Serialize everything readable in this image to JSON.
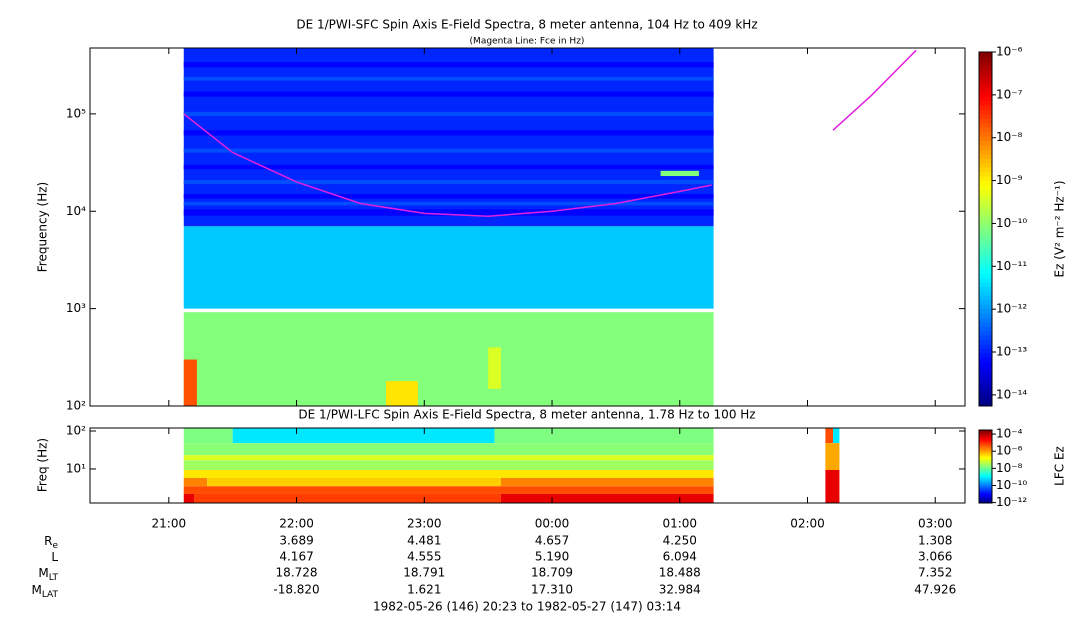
{
  "chart_data": [
    {
      "type": "spectrogram",
      "title": "DE 1/PWI-SFC  Spin Axis E-Field Spectra, 8 meter antenna, 104 Hz to 409 kHz",
      "subtitle": "(Magenta Line: Fce in Hz)",
      "y_label": "Frequency (Hz)",
      "colorbar_label": "Ez (V² m⁻² Hz⁻¹)",
      "colormap": "jet",
      "log_y": true,
      "log_color": true,
      "xlim": [
        20.383,
        27.233
      ],
      "ylim": [
        100,
        475000
      ],
      "yticks": [
        {
          "value": 100,
          "label": "10²"
        },
        {
          "value": 1000,
          "label": "10³"
        },
        {
          "value": 10000,
          "label": "10⁴"
        },
        {
          "value": 100000,
          "label": "10⁵"
        }
      ],
      "clim": [
        5.5e-15,
        1e-06
      ],
      "cticks": [
        {
          "value": 1e-06,
          "label": "10⁻⁶"
        },
        {
          "value": 1e-07,
          "label": "10⁻⁷"
        },
        {
          "value": 1e-08,
          "label": "10⁻⁸"
        },
        {
          "value": 1e-09,
          "label": "10⁻⁹"
        },
        {
          "value": 1e-10,
          "label": "10⁻¹⁰"
        },
        {
          "value": 1e-11,
          "label": "10⁻¹¹"
        },
        {
          "value": 1e-12,
          "label": "10⁻¹²"
        },
        {
          "value": 1e-13,
          "label": "10⁻¹³"
        },
        {
          "value": 1e-14,
          "label": "10⁻¹⁴"
        }
      ],
      "regions": [
        {
          "x": [
            21.117,
            25.265
          ],
          "y": [
            7000,
            475000
          ],
          "value": 1.2e-13
        },
        {
          "x": [
            21.117,
            25.265
          ],
          "y": [
            9000,
            10500
          ],
          "value": 6e-14
        },
        {
          "x": [
            21.117,
            25.265
          ],
          "y": [
            11500,
            12500
          ],
          "value": 2.5e-13
        },
        {
          "x": [
            21.117,
            25.265
          ],
          "y": [
            13500,
            15000
          ],
          "value": 6e-14
        },
        {
          "x": [
            21.117,
            25.265
          ],
          "y": [
            19000,
            21000
          ],
          "value": 2.5e-13
        },
        {
          "x": [
            21.117,
            25.265
          ],
          "y": [
            27000,
            30000
          ],
          "value": 6e-14
        },
        {
          "x": [
            21.117,
            25.265
          ],
          "y": [
            40000,
            44000
          ],
          "value": 2.5e-13
        },
        {
          "x": [
            21.117,
            25.265
          ],
          "y": [
            60000,
            68000
          ],
          "value": 6e-14
        },
        {
          "x": [
            21.117,
            25.265
          ],
          "y": [
            95000,
            105000
          ],
          "value": 2.5e-13
        },
        {
          "x": [
            21.117,
            25.265
          ],
          "y": [
            150000,
            170000
          ],
          "value": 6e-14
        },
        {
          "x": [
            21.117,
            25.265
          ],
          "y": [
            220000,
            240000
          ],
          "value": 2.5e-13
        },
        {
          "x": [
            21.117,
            25.265
          ],
          "y": [
            300000,
            340000
          ],
          "value": 6e-14
        },
        {
          "x": [
            24.85,
            25.15
          ],
          "y": [
            23000,
            26000
          ],
          "value": 8e-11
        },
        {
          "x": [
            21.117,
            25.265
          ],
          "y": [
            1000,
            7000
          ],
          "value": 2.5e-12
        },
        {
          "x": [
            21.117,
            25.265
          ],
          "y": [
            100,
            920
          ],
          "value": 8e-11
        },
        {
          "x": [
            21.117,
            21.22
          ],
          "y": [
            100,
            300
          ],
          "value": 2e-08
        },
        {
          "x": [
            22.7,
            22.95
          ],
          "y": [
            100,
            180
          ],
          "value": 1.3e-09
        },
        {
          "x": [
            23.5,
            23.6
          ],
          "y": [
            150,
            400
          ],
          "value": 4e-10
        }
      ],
      "series": [
        {
          "color": "#e020e0",
          "x": [
            21.117,
            21.5,
            22.0,
            22.5,
            23.0,
            23.5,
            24.0,
            24.5,
            25.0,
            25.25,
            25.7,
            26.2,
            26.5,
            26.85
          ],
          "values": [
            100000,
            40000,
            20000,
            12000,
            9500,
            8900,
            10000,
            12000,
            16000,
            18600,
            null,
            68000,
            155000,
            450000
          ]
        }
      ]
    },
    {
      "type": "spectrogram",
      "title": "DE 1/PWI-LFC  Spin Axis E-Field Spectra, 8 meter antenna, 1.78 Hz to 100 Hz",
      "y_label": "Freq (Hz)",
      "colorbar_label": "LFC Ez",
      "colormap": "jet",
      "log_y": true,
      "log_color": true,
      "xlim": [
        20.383,
        27.233
      ],
      "xticks": [
        {
          "value": 21,
          "label": "21:00"
        },
        {
          "value": 22,
          "label": "22:00"
        },
        {
          "value": 23,
          "label": "23:00"
        },
        {
          "value": 24,
          "label": "00:00"
        },
        {
          "value": 25,
          "label": "01:00"
        },
        {
          "value": 26,
          "label": "02:00"
        },
        {
          "value": 27,
          "label": "03:00"
        }
      ],
      "ylim": [
        1.27,
        120
      ],
      "yticks": [
        {
          "value": 10,
          "label": "10¹"
        },
        {
          "value": 100,
          "label": "10²"
        }
      ],
      "clim": [
        9e-13,
        0.0003
      ],
      "cticks": [
        {
          "value": 0.0001,
          "label": "10⁻⁴"
        },
        {
          "value": 1e-06,
          "label": "10⁻⁶"
        },
        {
          "value": 1e-08,
          "label": "10⁻⁸"
        },
        {
          "value": 1e-10,
          "label": "10⁻¹⁰"
        },
        {
          "value": 1e-12,
          "label": "10⁻¹²"
        }
      ],
      "regions": [
        {
          "x": [
            21.117,
            21.5
          ],
          "y": [
            48,
            120
          ],
          "value": 1.6e-08
        },
        {
          "x": [
            21.5,
            23.55
          ],
          "y": [
            48,
            120
          ],
          "value": 9e-10
        },
        {
          "x": [
            23.55,
            25.265
          ],
          "y": [
            48,
            120
          ],
          "value": 1.6e-08
        },
        {
          "x": [
            21.117,
            25.265
          ],
          "y": [
            23,
            48
          ],
          "value": 2e-08
        },
        {
          "x": [
            21.117,
            25.265
          ],
          "y": [
            17,
            23
          ],
          "value": 1e-07
        },
        {
          "x": [
            21.117,
            25.265
          ],
          "y": [
            9.4,
            17
          ],
          "value": 3e-08
        },
        {
          "x": [
            21.117,
            25.265
          ],
          "y": [
            5.8,
            9.4
          ],
          "value": 3e-07
        },
        {
          "x": [
            21.117,
            21.3
          ],
          "y": [
            3.5,
            5.8
          ],
          "value": 2e-06
        },
        {
          "x": [
            21.3,
            23.6
          ],
          "y": [
            3.5,
            5.8
          ],
          "value": 5e-07
        },
        {
          "x": [
            23.6,
            25.265
          ],
          "y": [
            3.5,
            5.8
          ],
          "value": 2e-06
        },
        {
          "x": [
            21.117,
            25.265
          ],
          "y": [
            2.2,
            3.5
          ],
          "value": 6e-06
        },
        {
          "x": [
            21.117,
            21.2
          ],
          "y": [
            1.27,
            2.2
          ],
          "value": 4e-05
        },
        {
          "x": [
            21.2,
            23.6
          ],
          "y": [
            1.27,
            2.2
          ],
          "value": 8e-06
        },
        {
          "x": [
            23.6,
            25.265
          ],
          "y": [
            1.27,
            2.2
          ],
          "value": 4e-05
        },
        {
          "x": [
            26.14,
            26.2
          ],
          "y": [
            48,
            120
          ],
          "value": 6e-06
        },
        {
          "x": [
            26.2,
            26.25
          ],
          "y": [
            48,
            120
          ],
          "value": 9e-10
        },
        {
          "x": [
            26.14,
            26.25
          ],
          "y": [
            9.4,
            48
          ],
          "value": 1e-06
        },
        {
          "x": [
            26.14,
            26.25
          ],
          "y": [
            1.27,
            9.4
          ],
          "value": 4e-05
        }
      ]
    }
  ],
  "ephemeris": {
    "rows": [
      {
        "label": "R",
        "sub": "e",
        "values": [
          null,
          "3.689",
          "4.481",
          "4.657",
          "4.250",
          null,
          "1.308"
        ]
      },
      {
        "label": "L",
        "values": [
          null,
          "4.167",
          "4.555",
          "5.190",
          "6.094",
          null,
          "3.066"
        ]
      },
      {
        "label": "M",
        "sub": "LT",
        "values": [
          null,
          "18.728",
          "18.791",
          "18.709",
          "18.488",
          null,
          "7.352"
        ]
      },
      {
        "label": "M",
        "sub": "LAT",
        "values": [
          null,
          "-18.820",
          "1.621",
          "17.310",
          "32.984",
          null,
          "47.926"
        ]
      }
    ]
  },
  "time_range": "1982-05-26 (146) 20:23 to 1982-05-27 (147) 03:14"
}
